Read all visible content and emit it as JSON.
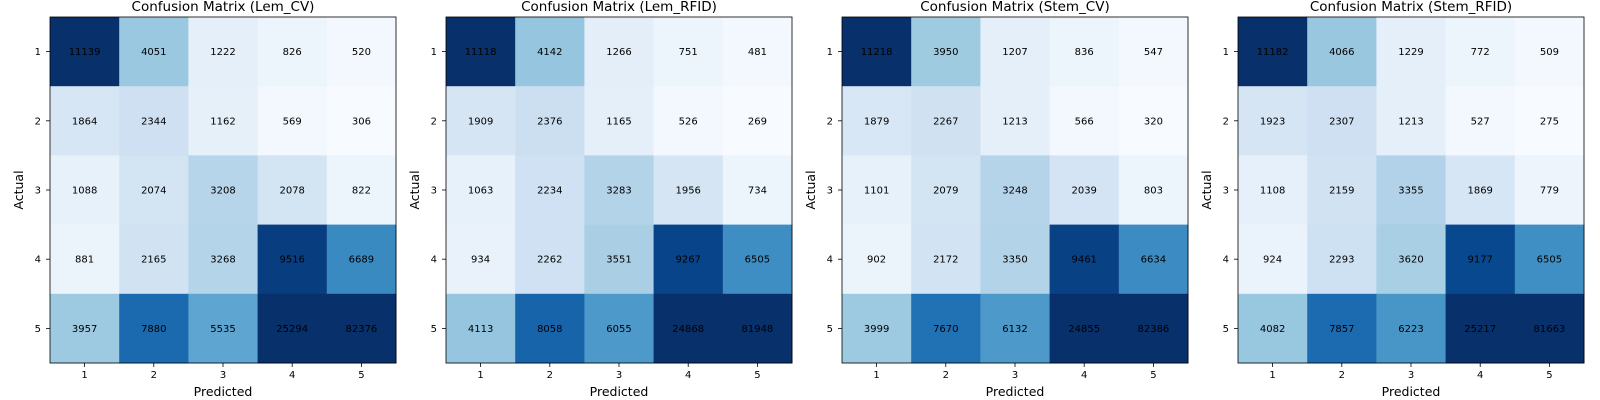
{
  "chart_data": [
    {
      "type": "heatmap",
      "title": "Confusion Matrix (Lem_CV)",
      "xlabel": "Predicted",
      "ylabel": "Actual",
      "x_ticks": [
        "1",
        "2",
        "3",
        "4",
        "5"
      ],
      "y_ticks": [
        "1",
        "2",
        "3",
        "4",
        "5"
      ],
      "colormap": "Blues",
      "values": [
        [
          11139,
          4051,
          1222,
          826,
          520
        ],
        [
          1864,
          2344,
          1162,
          569,
          306
        ],
        [
          1088,
          2074,
          3208,
          2078,
          822
        ],
        [
          881,
          2165,
          3268,
          9516,
          6689
        ],
        [
          3957,
          7880,
          5535,
          25294,
          82376
        ]
      ]
    },
    {
      "type": "heatmap",
      "title": "Confusion Matrix (Lem_RFID)",
      "xlabel": "Predicted",
      "ylabel": "Actual",
      "x_ticks": [
        "1",
        "2",
        "3",
        "4",
        "5"
      ],
      "y_ticks": [
        "1",
        "2",
        "3",
        "4",
        "5"
      ],
      "colormap": "Blues",
      "values": [
        [
          11118,
          4142,
          1266,
          751,
          481
        ],
        [
          1909,
          2376,
          1165,
          526,
          269
        ],
        [
          1063,
          2234,
          3283,
          1956,
          734
        ],
        [
          934,
          2262,
          3551,
          9267,
          6505
        ],
        [
          4113,
          8058,
          6055,
          24868,
          81948
        ]
      ]
    },
    {
      "type": "heatmap",
      "title": "Confusion Matrix (Stem_CV)",
      "xlabel": "Predicted",
      "ylabel": "Actual",
      "x_ticks": [
        "1",
        "2",
        "3",
        "4",
        "5"
      ],
      "y_ticks": [
        "1",
        "2",
        "3",
        "4",
        "5"
      ],
      "colormap": "Blues",
      "values": [
        [
          11218,
          3950,
          1207,
          836,
          547
        ],
        [
          1879,
          2267,
          1213,
          566,
          320
        ],
        [
          1101,
          2079,
          3248,
          2039,
          803
        ],
        [
          902,
          2172,
          3350,
          9461,
          6634
        ],
        [
          3999,
          7670,
          6132,
          24855,
          82386
        ]
      ]
    },
    {
      "type": "heatmap",
      "title": "Confusion Matrix (Stem_RFID)",
      "xlabel": "Predicted",
      "ylabel": "Actual",
      "x_ticks": [
        "1",
        "2",
        "3",
        "4",
        "5"
      ],
      "y_ticks": [
        "1",
        "2",
        "3",
        "4",
        "5"
      ],
      "colormap": "Blues",
      "values": [
        [
          11182,
          4066,
          1229,
          772,
          509
        ],
        [
          1923,
          2307,
          1213,
          527,
          275
        ],
        [
          1108,
          2159,
          3355,
          1869,
          779
        ],
        [
          924,
          2293,
          3620,
          9177,
          6505
        ],
        [
          4082,
          7857,
          6223,
          25217,
          81663
        ]
      ]
    }
  ]
}
